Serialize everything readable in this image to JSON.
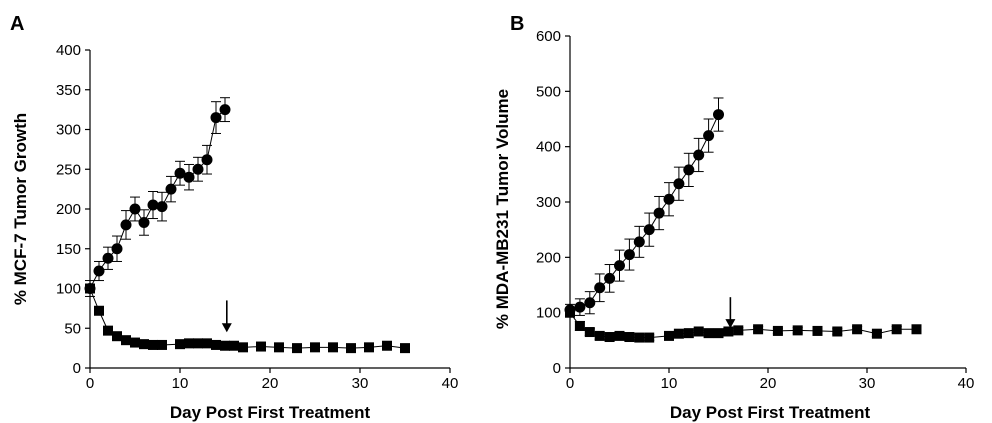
{
  "chart_data": [
    {
      "type": "scatter",
      "panel": "A",
      "xlabel": "Day Post First Treatment",
      "ylabel": "% MCF-7 Tumor Growth",
      "xlim": [
        0,
        40
      ],
      "ylim": [
        0,
        400
      ],
      "xticks": [
        0,
        10,
        20,
        30,
        40
      ],
      "yticks": [
        0,
        50,
        100,
        150,
        200,
        250,
        300,
        350,
        400
      ],
      "grid": false,
      "arrow_at": {
        "x": 15.2,
        "y_top": 85,
        "y_bottom": 45
      },
      "series": [
        {
          "marker": "circle",
          "x": [
            0,
            1,
            2,
            3,
            4,
            5,
            6,
            7,
            8,
            9,
            10,
            11,
            12,
            13,
            14,
            15
          ],
          "y": [
            100,
            122,
            138,
            150,
            180,
            200,
            183,
            205,
            203,
            225,
            245,
            240,
            250,
            262,
            315,
            325
          ],
          "err": [
            10,
            12,
            14,
            16,
            18,
            15,
            16,
            17,
            18,
            16,
            15,
            16,
            15,
            18,
            20,
            15
          ]
        },
        {
          "marker": "square",
          "x": [
            0,
            1,
            2,
            3,
            4,
            5,
            6,
            7,
            8,
            10,
            11,
            12,
            13,
            14,
            15,
            16,
            17,
            19,
            21,
            23,
            25,
            27,
            29,
            31,
            33,
            35
          ],
          "y": [
            100,
            72,
            47,
            40,
            35,
            32,
            30,
            29,
            29,
            30,
            31,
            31,
            31,
            29,
            28,
            28,
            26,
            27,
            26,
            25,
            26,
            26,
            25,
            26,
            28,
            25
          ],
          "err": [
            3,
            5,
            5,
            4,
            3,
            3,
            3,
            3,
            3,
            3,
            3,
            3,
            3,
            3,
            3,
            3,
            3,
            3,
            3,
            3,
            3,
            3,
            3,
            3,
            3,
            3
          ]
        }
      ]
    },
    {
      "type": "scatter",
      "panel": "B",
      "xlabel": "Day Post First Treatment",
      "ylabel": "% MDA-MB231 Tumor Volume",
      "xlim": [
        0,
        40
      ],
      "ylim": [
        0,
        600
      ],
      "xticks": [
        0,
        10,
        20,
        30,
        40
      ],
      "yticks": [
        0,
        100,
        200,
        300,
        400,
        500,
        600
      ],
      "grid": false,
      "arrow_at": {
        "x": 16.2,
        "y_top": 128,
        "y_bottom": 72
      },
      "series": [
        {
          "marker": "circle",
          "x": [
            0,
            1,
            2,
            3,
            4,
            5,
            6,
            7,
            8,
            9,
            10,
            11,
            12,
            13,
            14,
            15
          ],
          "y": [
            105,
            110,
            118,
            145,
            162,
            185,
            205,
            228,
            250,
            280,
            305,
            333,
            358,
            385,
            420,
            458
          ],
          "err": [
            10,
            15,
            20,
            25,
            25,
            28,
            28,
            28,
            30,
            30,
            30,
            30,
            30,
            30,
            30,
            30
          ]
        },
        {
          "marker": "square",
          "x": [
            0,
            1,
            2,
            3,
            4,
            5,
            6,
            7,
            8,
            10,
            11,
            12,
            13,
            14,
            15,
            16,
            17,
            19,
            21,
            23,
            25,
            27,
            29,
            31,
            33,
            35
          ],
          "y": [
            100,
            76,
            65,
            58,
            56,
            58,
            56,
            55,
            55,
            58,
            62,
            63,
            66,
            63,
            63,
            66,
            68,
            70,
            67,
            68,
            67,
            66,
            70,
            62,
            70,
            70
          ],
          "err": [
            8,
            8,
            6,
            6,
            5,
            5,
            5,
            5,
            5,
            5,
            5,
            5,
            5,
            5,
            5,
            5,
            5,
            5,
            5,
            5,
            5,
            5,
            5,
            5,
            5,
            5
          ]
        }
      ]
    }
  ]
}
